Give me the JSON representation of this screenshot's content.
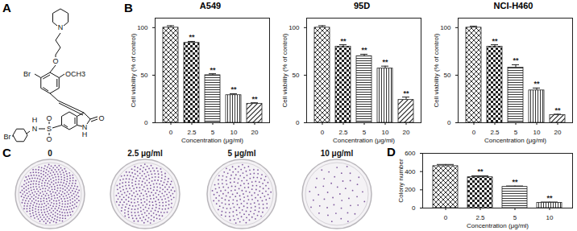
{
  "panel_labels": [
    "A",
    "B",
    "C",
    "D"
  ],
  "structure": {
    "atom_labels": [
      "N",
      "O",
      "OCH3",
      "Br",
      "H",
      "N",
      "S",
      "O",
      "O",
      "Br",
      "N",
      "H",
      "O"
    ]
  },
  "colony_images": {
    "labels": [
      "0",
      "2.5 μg/ml",
      "5 μg/ml",
      "10 μg/ml"
    ],
    "color": "#6b3f8f"
  },
  "chart_data": [
    {
      "type": "bar",
      "title": "A549",
      "xlabel": "Concentration (μg/ml)",
      "ylabel": "Cell viability (% of control)",
      "categories": [
        0,
        2.5,
        5,
        10,
        20
      ],
      "values": [
        100,
        84,
        50,
        29,
        20
      ],
      "errors": [
        2,
        1.5,
        1.5,
        1.5,
        1
      ],
      "significance": [
        null,
        "**",
        "**",
        "**",
        "**"
      ],
      "ylim": [
        0,
        110
      ],
      "yticks": [
        0,
        50,
        100
      ],
      "color": "#222222"
    },
    {
      "type": "bar",
      "title": "95D",
      "xlabel": "Concentration (μg/ml)",
      "ylabel": "Cell viability (% of control)",
      "categories": [
        0,
        2.5,
        5,
        10,
        20
      ],
      "values": [
        100,
        80,
        70,
        57,
        24
      ],
      "errors": [
        2,
        2,
        2,
        2.5,
        3
      ],
      "significance": [
        null,
        "**",
        "**",
        "**",
        "**"
      ],
      "ylim": [
        0,
        110
      ],
      "yticks": [
        0,
        50,
        100
      ],
      "color": "#222222"
    },
    {
      "type": "bar",
      "title": "NCI-H460",
      "xlabel": "Concentration (μg/ml)",
      "ylabel": "Cell viability (% of control)",
      "categories": [
        0,
        2.5,
        5,
        10,
        20
      ],
      "values": [
        100,
        80,
        58,
        34,
        8
      ],
      "errors": [
        1.5,
        2,
        3,
        2.5,
        1
      ],
      "significance": [
        null,
        "**",
        "**",
        "**",
        "**"
      ],
      "ylim": [
        0,
        110
      ],
      "yticks": [
        0,
        50,
        100
      ],
      "color": "#222222"
    },
    {
      "type": "bar",
      "xlabel": "Concentration (μg/ml)",
      "ylabel": "Colony number",
      "categories": [
        0,
        2.5,
        5,
        10
      ],
      "values": [
        460,
        338,
        232,
        58
      ],
      "errors": [
        18,
        15,
        10,
        8
      ],
      "significance": [
        null,
        "**",
        "**",
        "**"
      ],
      "ylim": [
        0,
        600
      ],
      "yticks": [
        0,
        200,
        400,
        600
      ],
      "color": "#222222"
    }
  ]
}
